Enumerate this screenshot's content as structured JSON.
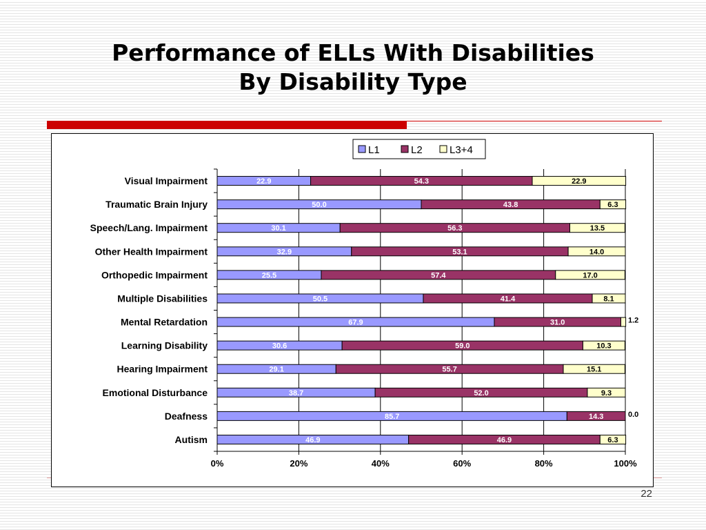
{
  "slide": {
    "title_line1": "Performance of ELLs With Disabilities",
    "title_line2": "By Disability Type",
    "page_number": "22"
  },
  "colors": {
    "accent": "#cc0000",
    "L1": "#9999ff",
    "L2": "#993366",
    "L3+4": "#ffffcc"
  },
  "chart_data": {
    "type": "bar",
    "orientation": "horizontal",
    "stacked": "percent",
    "categories": [
      "Visual Impairment",
      "Traumatic Brain Injury",
      "Speech/Lang. Impairment",
      "Other Health Impairment",
      "Orthopedic Impairment",
      "Multiple Disabilities",
      "Mental Retardation",
      "Learning Disability",
      "Hearing Impairment",
      "Emotional Disturbance",
      "Deafness",
      "Autism"
    ],
    "series": [
      {
        "name": "L1",
        "color": "#9999ff",
        "label_color": "#ffffff",
        "values": [
          22.9,
          50.0,
          30.1,
          32.9,
          25.5,
          50.5,
          67.9,
          30.6,
          29.1,
          38.7,
          85.7,
          46.9
        ],
        "labels": [
          "22.9",
          "50.0",
          "30.1",
          "32.9",
          "25.5",
          "50.5",
          "67.9",
          "30.6",
          "29.1",
          "38.7",
          "85.7",
          "46.9"
        ]
      },
      {
        "name": "L2",
        "color": "#993366",
        "label_color": "#ffffff",
        "values": [
          54.3,
          43.8,
          56.3,
          53.1,
          57.4,
          41.4,
          31.0,
          59.0,
          55.7,
          52.0,
          14.3,
          46.9
        ],
        "labels": [
          "54.3",
          "43.8",
          "56.3",
          "53.1",
          "57.4",
          "41.4",
          "31.0",
          "59.0",
          "55.7",
          "52.0",
          "14.3",
          "46.9"
        ]
      },
      {
        "name": "L3+4",
        "color": "#ffffcc",
        "label_color": "#000000",
        "values": [
          22.9,
          6.3,
          13.5,
          14.0,
          17.0,
          8.1,
          1.2,
          10.3,
          15.1,
          9.3,
          0.0,
          6.3
        ],
        "labels": [
          "22.9",
          "6.3",
          "13.5",
          "14.0",
          "17.0",
          "8.1",
          "1.2",
          "10.3",
          "15.1",
          "9.3",
          "0.0",
          "6.3"
        ]
      }
    ],
    "xlim": [
      0,
      100
    ],
    "x_ticks": [
      "0%",
      "20%",
      "40%",
      "60%",
      "80%",
      "100%"
    ],
    "grid": "vertical",
    "legend_position": "top-right",
    "xlabel": "",
    "ylabel": ""
  }
}
